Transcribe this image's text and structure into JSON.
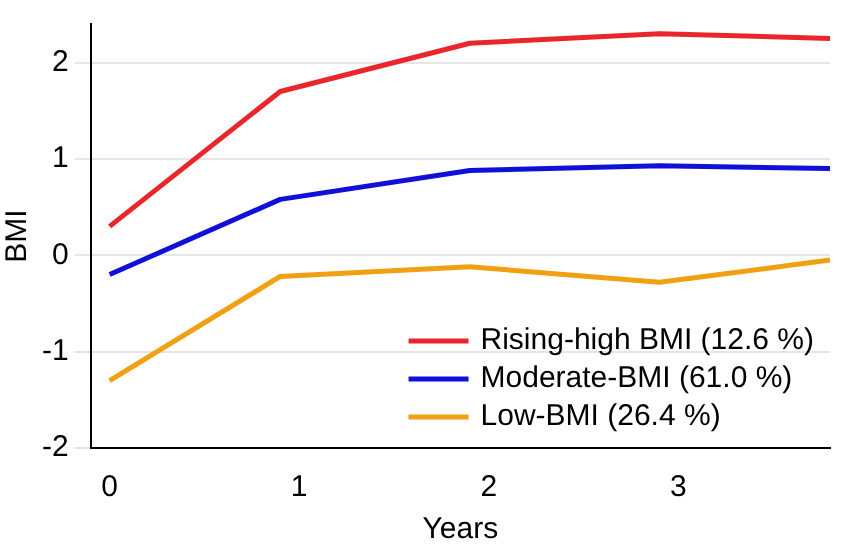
{
  "chart_data": {
    "type": "line",
    "xlabel": "Years",
    "ylabel": "BMI",
    "x": [
      0,
      0.9,
      1.9,
      2.9,
      3.8
    ],
    "series": [
      {
        "name": "Rising-high BMI (12.6 %)",
        "color": "#e8262b",
        "values": [
          0.3,
          1.7,
          2.2,
          2.3,
          2.25
        ]
      },
      {
        "name": "Moderate-BMI (61.0 %)",
        "color": "#1010d8",
        "values": [
          -0.2,
          0.58,
          0.88,
          0.93,
          0.9
        ]
      },
      {
        "name": "Low-BMI (26.4 %)",
        "color": "#f0a010",
        "values": [
          -1.3,
          -0.22,
          -0.12,
          -0.28,
          -0.05
        ]
      }
    ],
    "xlim": [
      -0.1,
      3.8
    ],
    "xticks": [
      0,
      1,
      2,
      3
    ],
    "ylim": [
      -2,
      2.4
    ],
    "yticks": [
      -2,
      -1,
      0,
      1,
      2
    ],
    "grid": "y",
    "legend": "bottom right",
    "marker": "none",
    "line_style": "solid"
  }
}
